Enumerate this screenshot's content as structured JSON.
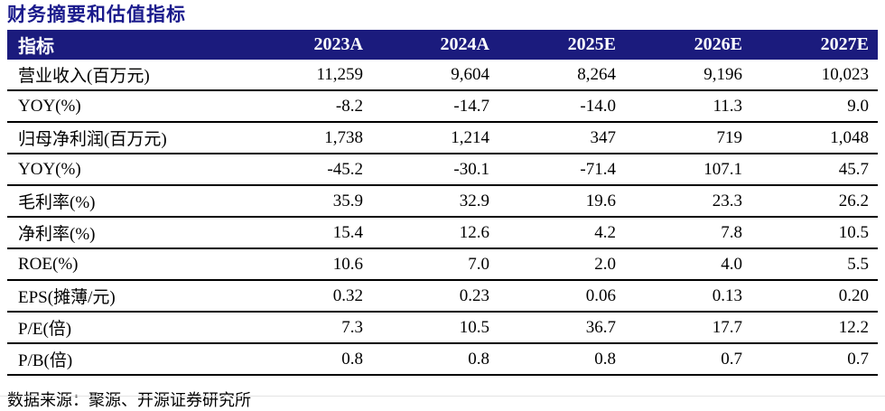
{
  "title": "财务摘要和估值指标",
  "table": {
    "header": [
      "指标",
      "2023A",
      "2024A",
      "2025E",
      "2026E",
      "2027E"
    ],
    "rows": [
      {
        "label": "营业收入(百万元)",
        "values": [
          "11,259",
          "9,604",
          "8,264",
          "9,196",
          "10,023"
        ]
      },
      {
        "label": "YOY(%)",
        "values": [
          "-8.2",
          "-14.7",
          "-14.0",
          "11.3",
          "9.0"
        ]
      },
      {
        "label": "归母净利润(百万元)",
        "values": [
          "1,738",
          "1,214",
          "347",
          "719",
          "1,048"
        ]
      },
      {
        "label": "YOY(%)",
        "values": [
          "-45.2",
          "-30.1",
          "-71.4",
          "107.1",
          "45.7"
        ]
      },
      {
        "label": "毛利率(%)",
        "values": [
          "35.9",
          "32.9",
          "19.6",
          "23.3",
          "26.2"
        ]
      },
      {
        "label": "净利率(%)",
        "values": [
          "15.4",
          "12.6",
          "4.2",
          "7.8",
          "10.5"
        ]
      },
      {
        "label": "ROE(%)",
        "values": [
          "10.6",
          "7.0",
          "2.0",
          "4.0",
          "5.5"
        ]
      },
      {
        "label": "EPS(摊薄/元)",
        "values": [
          "0.32",
          "0.23",
          "0.06",
          "0.13",
          "0.20"
        ]
      },
      {
        "label": "P/E(倍)",
        "values": [
          "7.3",
          "10.5",
          "36.7",
          "17.7",
          "12.2"
        ]
      },
      {
        "label": "P/B(倍)",
        "values": [
          "0.8",
          "0.8",
          "0.8",
          "0.7",
          "0.7"
        ]
      }
    ]
  },
  "footer": {
    "source": "数据来源：聚源、开源证券研究所"
  },
  "colors": {
    "header_bg": "#1b1b7d",
    "title_color": "#1a1a8c",
    "row_border": "#000000",
    "text": "#000000"
  }
}
